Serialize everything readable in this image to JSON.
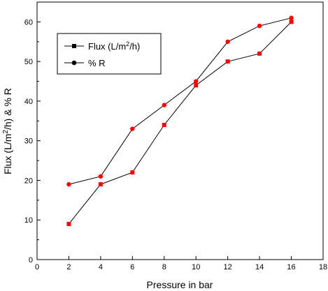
{
  "chart_data": {
    "type": "line",
    "xlabel": "Pressure in bar",
    "ylabel": {
      "before": "Flux (L/m",
      "sup": "2",
      "after": "/h) & % R"
    },
    "xlim": [
      0,
      18
    ],
    "ylim": [
      0,
      65
    ],
    "x_ticks": [
      0,
      2,
      4,
      6,
      8,
      10,
      12,
      14,
      16,
      18
    ],
    "y_ticks": [
      0,
      10,
      20,
      30,
      40,
      50,
      60
    ],
    "grid": false,
    "legend_position": "top-left",
    "series": [
      {
        "name": "Flux (L/m2/h)",
        "legend_label": {
          "before": "Flux (L/m",
          "sup": "2",
          "after": "/h)"
        },
        "marker": "square",
        "x": [
          2,
          4,
          6,
          8,
          10,
          12,
          14,
          16
        ],
        "y": [
          9,
          19,
          22,
          34,
          44,
          50,
          52,
          60
        ]
      },
      {
        "name": "% R",
        "legend_label": {
          "before": "% R",
          "sup": "",
          "after": ""
        },
        "marker": "circle",
        "x": [
          2,
          4,
          6,
          8,
          10,
          12,
          14,
          16
        ],
        "y": [
          19,
          21,
          33,
          39,
          45,
          55,
          59,
          61
        ]
      }
    ],
    "colors": {
      "line": "#000000",
      "marker": "#ff0000",
      "legend_marker": "#000000",
      "axis": "#000000"
    }
  }
}
